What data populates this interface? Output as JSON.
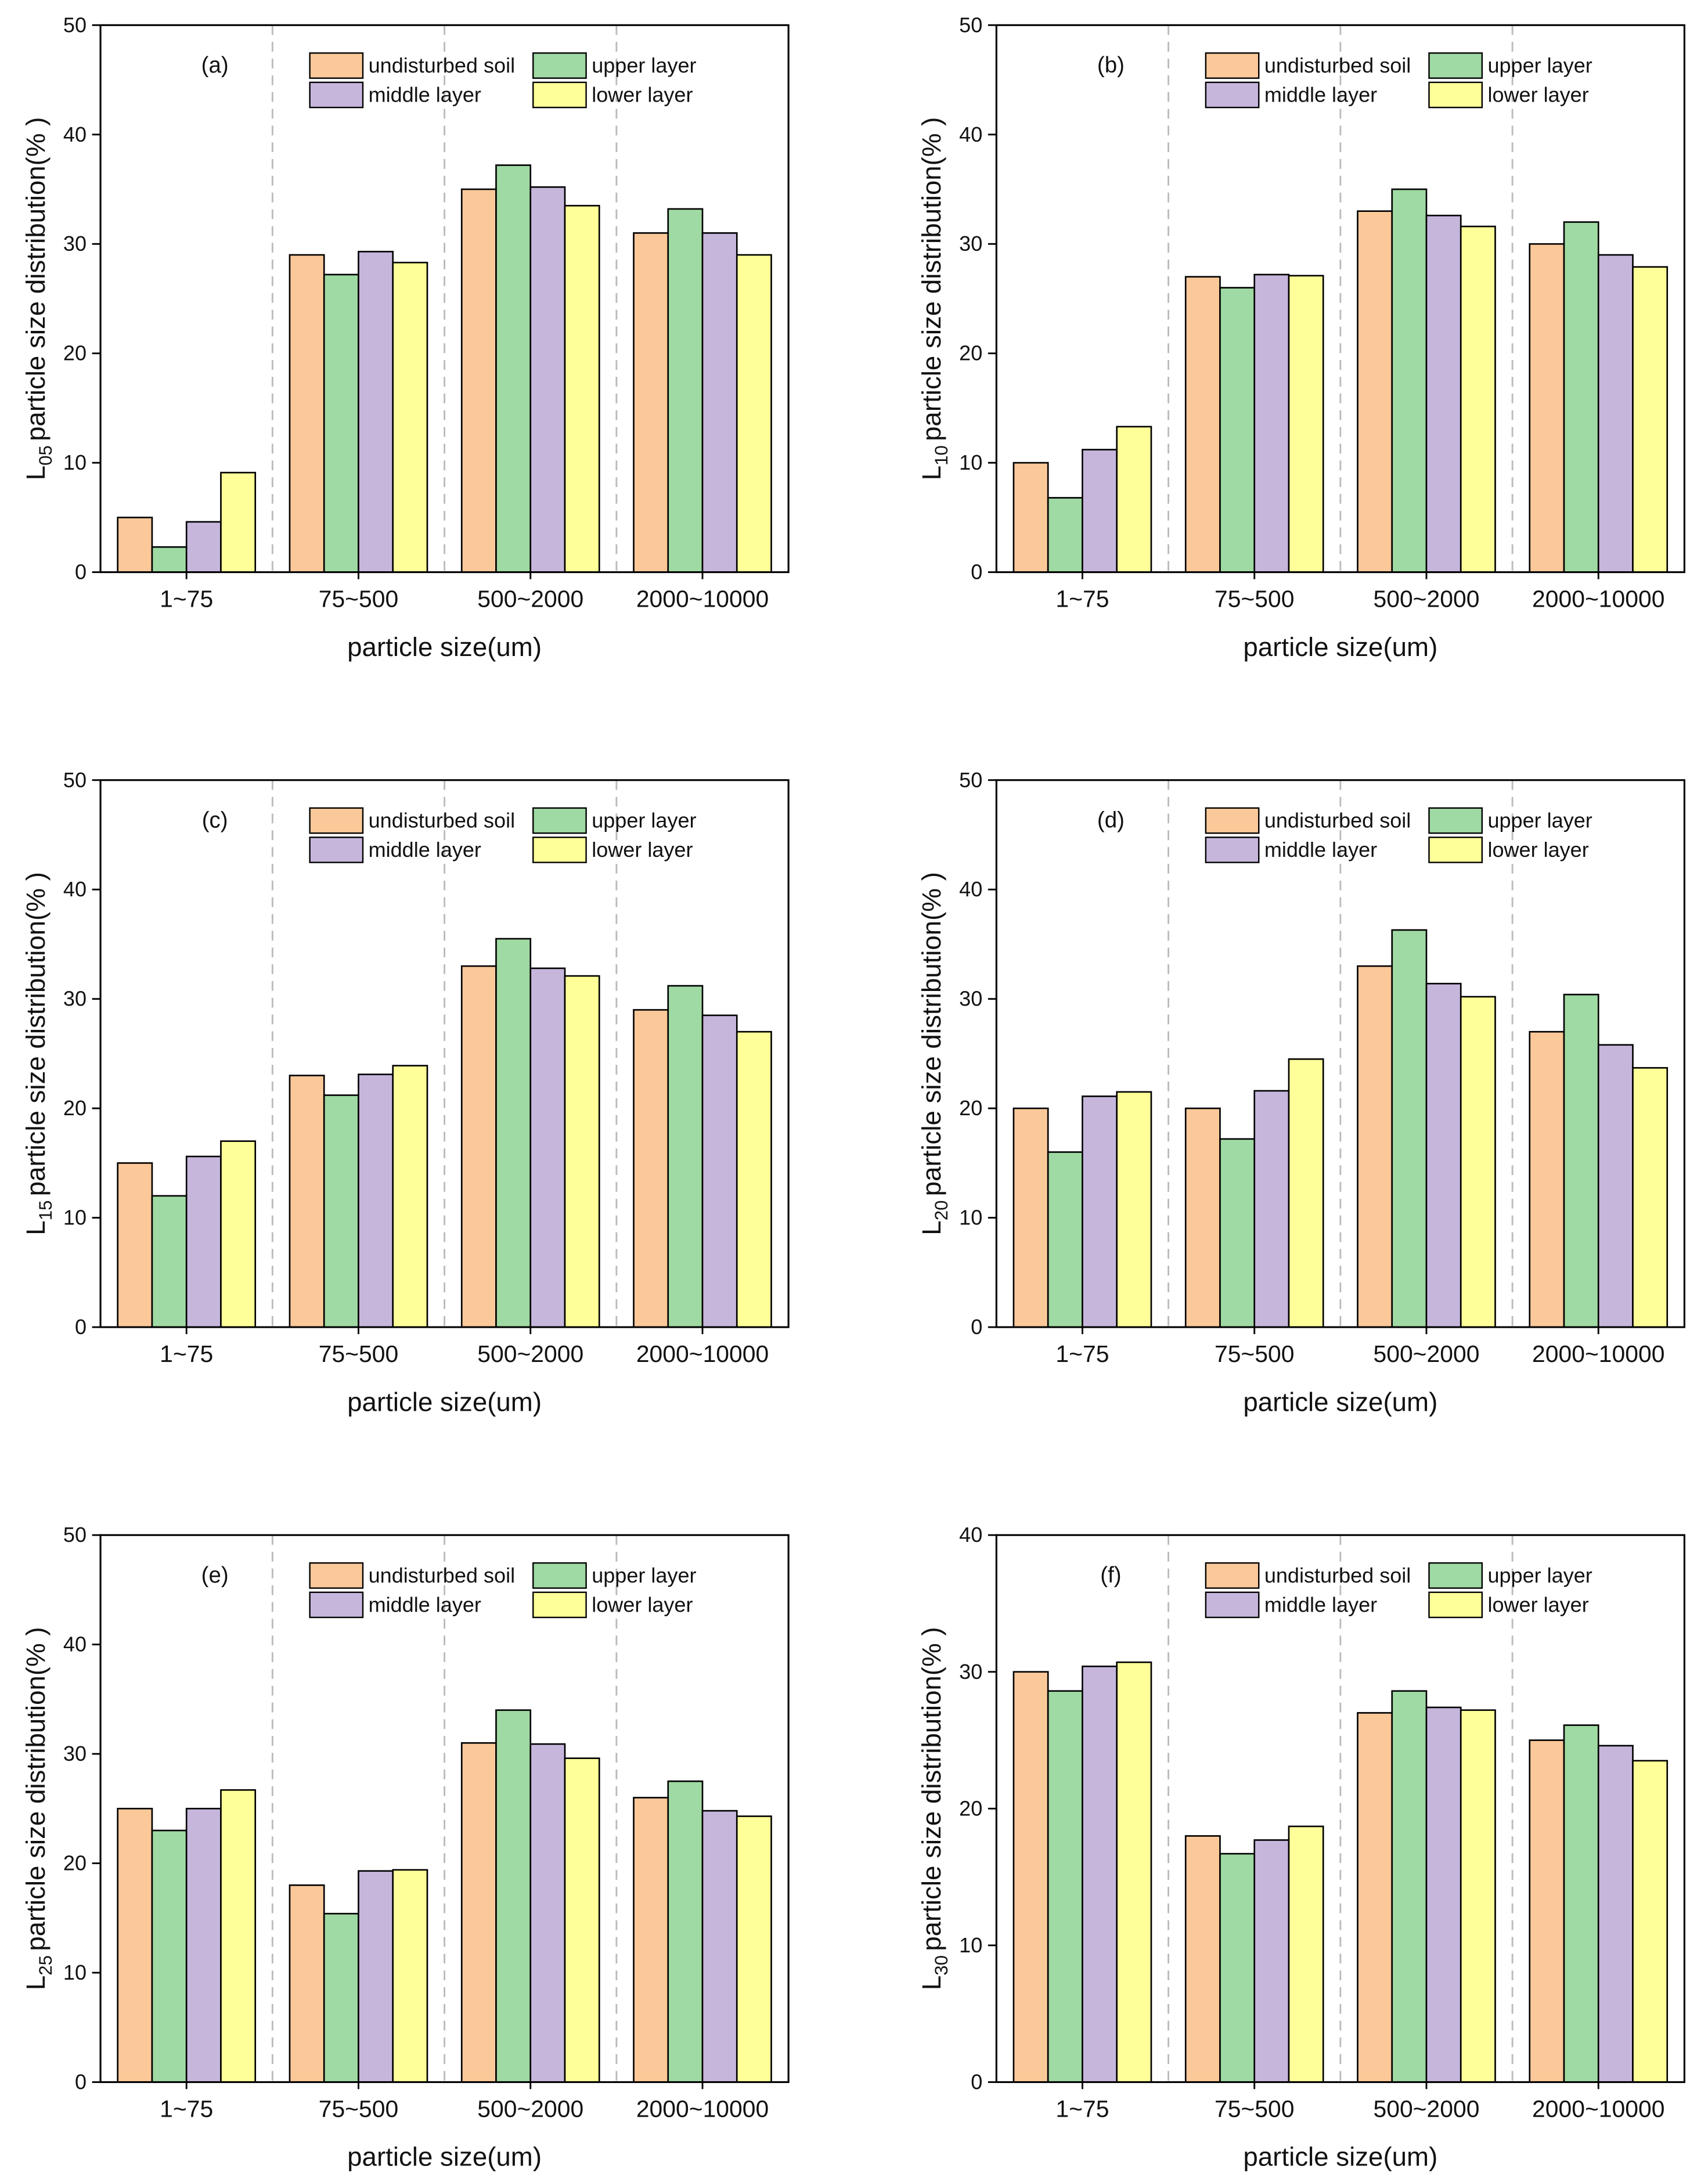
{
  "chart_data": [
    {
      "type": "bar",
      "panel_label": "(a)",
      "ylabel": [
        "L",
        "05",
        "particle size distribution(% )"
      ],
      "xlabel": "particle size(um)",
      "categories": [
        "1~75",
        "75~500",
        "500~2000",
        "2000~10000"
      ],
      "ylim": [
        0,
        50
      ],
      "yticks": [
        0,
        10,
        20,
        30,
        40,
        50
      ],
      "series": [
        {
          "name": "undisturbed soil",
          "color": "#fbc899",
          "values": [
            5,
            29,
            35,
            31
          ]
        },
        {
          "name": "upper layer",
          "color": "#9fd9a3",
          "values": [
            2.3,
            27.2,
            37.2,
            33.2
          ]
        },
        {
          "name": "middle layer",
          "color": "#c6b6dc",
          "values": [
            4.6,
            29.3,
            35.2,
            31
          ]
        },
        {
          "name": "lower layer",
          "color": "#ffff99",
          "values": [
            9.1,
            28.3,
            33.5,
            29
          ]
        }
      ]
    },
    {
      "type": "bar",
      "panel_label": "(b)",
      "ylabel": [
        "L",
        "10",
        "particle size distribution(% )"
      ],
      "xlabel": "particle size(um)",
      "categories": [
        "1~75",
        "75~500",
        "500~2000",
        "2000~10000"
      ],
      "ylim": [
        0,
        50
      ],
      "yticks": [
        0,
        10,
        20,
        30,
        40,
        50
      ],
      "series": [
        {
          "name": "undisturbed soil",
          "color": "#fbc899",
          "values": [
            10,
            27,
            33,
            30
          ]
        },
        {
          "name": "upper layer",
          "color": "#9fd9a3",
          "values": [
            6.8,
            26,
            35,
            32
          ]
        },
        {
          "name": "middle layer",
          "color": "#c6b6dc",
          "values": [
            11.2,
            27.2,
            32.6,
            29
          ]
        },
        {
          "name": "lower layer",
          "color": "#ffff99",
          "values": [
            13.3,
            27.1,
            31.6,
            27.9
          ]
        }
      ]
    },
    {
      "type": "bar",
      "panel_label": "(c)",
      "ylabel": [
        "L",
        "15",
        "particle size distribution(% )"
      ],
      "xlabel": "particle size(um)",
      "categories": [
        "1~75",
        "75~500",
        "500~2000",
        "2000~10000"
      ],
      "ylim": [
        0,
        50
      ],
      "yticks": [
        0,
        10,
        20,
        30,
        40,
        50
      ],
      "series": [
        {
          "name": "undisturbed soil",
          "color": "#fbc899",
          "values": [
            15,
            23,
            33,
            29
          ]
        },
        {
          "name": "upper layer",
          "color": "#9fd9a3",
          "values": [
            12,
            21.2,
            35.5,
            31.2
          ]
        },
        {
          "name": "middle layer",
          "color": "#c6b6dc",
          "values": [
            15.6,
            23.1,
            32.8,
            28.5
          ]
        },
        {
          "name": "lower layer",
          "color": "#ffff99",
          "values": [
            17,
            23.9,
            32.1,
            27
          ]
        }
      ]
    },
    {
      "type": "bar",
      "panel_label": "(d)",
      "ylabel": [
        "L",
        "20",
        "particle size distribution(% )"
      ],
      "xlabel": "particle size(um)",
      "categories": [
        "1~75",
        "75~500",
        "500~2000",
        "2000~10000"
      ],
      "ylim": [
        0,
        50
      ],
      "yticks": [
        0,
        10,
        20,
        30,
        40,
        50
      ],
      "series": [
        {
          "name": "undisturbed soil",
          "color": "#fbc899",
          "values": [
            20,
            20,
            33,
            27
          ]
        },
        {
          "name": "upper layer",
          "color": "#9fd9a3",
          "values": [
            16,
            17.2,
            36.3,
            30.4
          ]
        },
        {
          "name": "middle layer",
          "color": "#c6b6dc",
          "values": [
            21.1,
            21.6,
            31.4,
            25.8
          ]
        },
        {
          "name": "lower layer",
          "color": "#ffff99",
          "values": [
            21.5,
            24.5,
            30.2,
            23.7
          ]
        }
      ]
    },
    {
      "type": "bar",
      "panel_label": "(e)",
      "ylabel": [
        "L",
        "25",
        "particle size distribution(% )"
      ],
      "xlabel": "particle size(um)",
      "categories": [
        "1~75",
        "75~500",
        "500~2000",
        "2000~10000"
      ],
      "ylim": [
        0,
        50
      ],
      "yticks": [
        0,
        10,
        20,
        30,
        40,
        50
      ],
      "series": [
        {
          "name": "undisturbed soil",
          "color": "#fbc899",
          "values": [
            25,
            18,
            31,
            26
          ]
        },
        {
          "name": "upper layer",
          "color": "#9fd9a3",
          "values": [
            23,
            15.4,
            34,
            27.5
          ]
        },
        {
          "name": "middle layer",
          "color": "#c6b6dc",
          "values": [
            25,
            19.3,
            30.9,
            24.8
          ]
        },
        {
          "name": "lower layer",
          "color": "#ffff99",
          "values": [
            26.7,
            19.4,
            29.6,
            24.3
          ]
        }
      ]
    },
    {
      "type": "bar",
      "panel_label": "(f)",
      "ylabel": [
        "L",
        "30",
        "particle size distribution(% )"
      ],
      "xlabel": "particle size(um)",
      "categories": [
        "1~75",
        "75~500",
        "500~2000",
        "2000~10000"
      ],
      "ylim": [
        0,
        40
      ],
      "yticks": [
        0,
        10,
        20,
        30,
        40
      ],
      "series": [
        {
          "name": "undisturbed soil",
          "color": "#fbc899",
          "values": [
            30,
            18,
            27,
            25
          ]
        },
        {
          "name": "upper layer",
          "color": "#9fd9a3",
          "values": [
            28.6,
            16.7,
            28.6,
            26.1
          ]
        },
        {
          "name": "middle layer",
          "color": "#c6b6dc",
          "values": [
            30.4,
            17.7,
            27.4,
            24.6
          ]
        },
        {
          "name": "lower layer",
          "color": "#ffff99",
          "values": [
            30.7,
            18.7,
            27.2,
            23.5
          ]
        }
      ]
    }
  ]
}
